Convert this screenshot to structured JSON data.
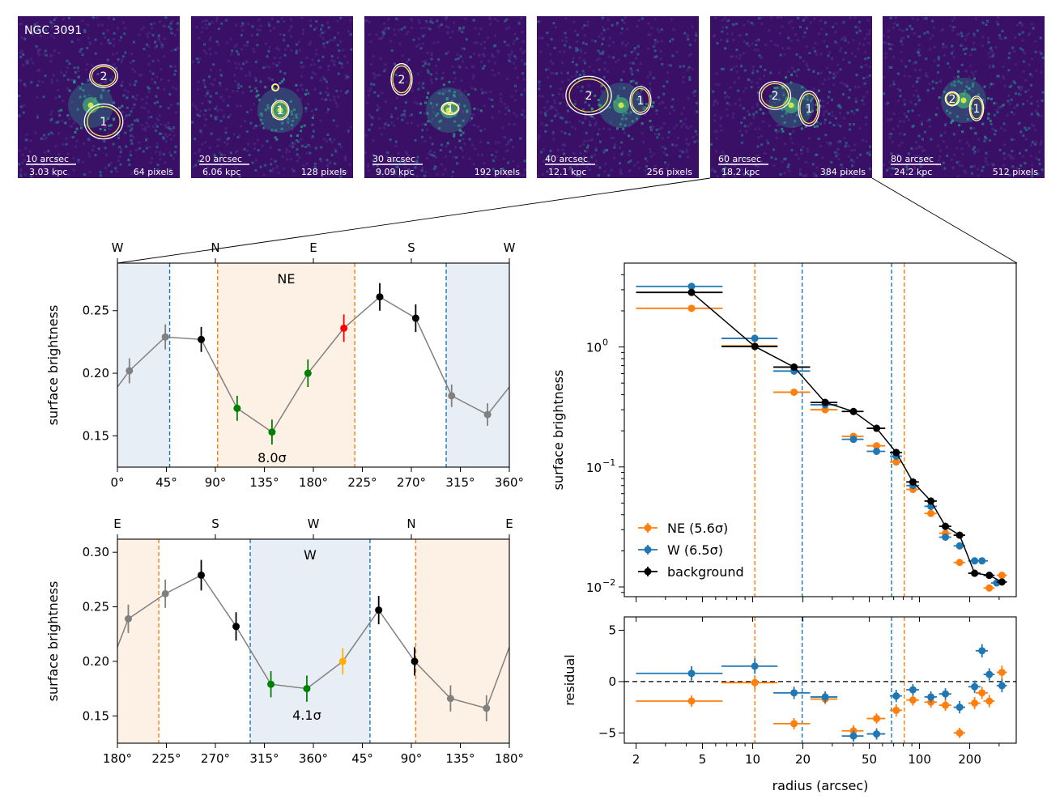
{
  "figure_title": "",
  "images": [
    {
      "object": "NGC 3091",
      "scale": "10 arcsec",
      "kpc": "3.03 kpc",
      "pixels": "64 pixels"
    },
    {
      "object": "",
      "scale": "20 arcsec",
      "kpc": "6.06 kpc",
      "pixels": "128 pixels"
    },
    {
      "object": "",
      "scale": "30 arcsec",
      "kpc": "9.09 kpc",
      "pixels": "192 pixels"
    },
    {
      "object": "",
      "scale": "40 arcsec",
      "kpc": "12.1 kpc",
      "pixels": "256 pixels"
    },
    {
      "object": "",
      "scale": "60 arcsec",
      "kpc": "18.2 kpc",
      "pixels": "384 pixels"
    },
    {
      "object": "",
      "scale": "80 arcsec",
      "kpc": "24.2 kpc",
      "pixels": "512 pixels"
    }
  ],
  "contour_labels": [
    "1",
    "2"
  ],
  "colors": {
    "ne": "#ff7f0e",
    "w": "#1f77b4",
    "bg": "#000000",
    "gray": "#808080",
    "green": "#008000",
    "red": "#ff0000",
    "gold": "#ffb000",
    "ne_fill": "#fdf1e5",
    "w_fill": "#e8eef6",
    "image_bg": "#3a0f66"
  },
  "chart_data": [
    {
      "type": "line",
      "id": "top-azimuthal",
      "title": "",
      "ylabel": "surface brightness",
      "xlabel": "",
      "xlim": [
        0,
        360
      ],
      "ylim": [
        0.125,
        0.288
      ],
      "xticks": [
        0,
        45,
        90,
        135,
        180,
        225,
        270,
        315,
        360
      ],
      "xtick_labels": [
        "0°",
        "45°",
        "90°",
        "135°",
        "180°",
        "225°",
        "270°",
        "315°",
        "360°"
      ],
      "yticks": [
        0.15,
        0.2,
        0.25
      ],
      "ytick_labels": [
        "0.15",
        "0.20",
        "0.25"
      ],
      "top_ticks": [
        0,
        90,
        180,
        270,
        360
      ],
      "top_tick_labels": [
        "W",
        "N",
        "E",
        "S",
        "W"
      ],
      "region_label": "NE",
      "significance": "8.0σ",
      "bands": [
        {
          "from": 0,
          "to": 48,
          "kind": "w"
        },
        {
          "from": 92,
          "to": 218,
          "kind": "ne"
        },
        {
          "from": 302,
          "to": 360,
          "kind": "w"
        }
      ],
      "vlines": [
        {
          "x": 48,
          "kind": "w"
        },
        {
          "x": 92,
          "kind": "ne"
        },
        {
          "x": 218,
          "kind": "ne"
        },
        {
          "x": 302,
          "kind": "w"
        }
      ],
      "points": [
        {
          "x": 11,
          "y": 0.202,
          "err": 0.01,
          "c": "gray"
        },
        {
          "x": 44,
          "y": 0.229,
          "err": 0.01,
          "c": "gray"
        },
        {
          "x": 77,
          "y": 0.227,
          "err": 0.01,
          "c": "bg"
        },
        {
          "x": 110,
          "y": 0.172,
          "err": 0.01,
          "c": "green"
        },
        {
          "x": 142,
          "y": 0.153,
          "err": 0.01,
          "c": "green"
        },
        {
          "x": 175,
          "y": 0.2,
          "err": 0.011,
          "c": "green"
        },
        {
          "x": 208,
          "y": 0.236,
          "err": 0.011,
          "c": "red"
        },
        {
          "x": 241,
          "y": 0.261,
          "err": 0.011,
          "c": "bg"
        },
        {
          "x": 274,
          "y": 0.244,
          "err": 0.011,
          "c": "bg"
        },
        {
          "x": 307,
          "y": 0.182,
          "err": 0.009,
          "c": "gray"
        },
        {
          "x": 340,
          "y": 0.167,
          "err": 0.009,
          "c": "gray"
        }
      ],
      "wrap_y": 0.189
    },
    {
      "type": "line",
      "id": "bottom-azimuthal",
      "title": "",
      "ylabel": "surface brightness",
      "xlabel": "",
      "xlim": [
        0,
        360
      ],
      "ylim": [
        0.125,
        0.312
      ],
      "xticks": [
        0,
        45,
        90,
        135,
        180,
        225,
        270,
        315,
        360
      ],
      "xtick_labels": [
        "180°",
        "225°",
        "270°",
        "315°",
        "360°",
        "45°",
        "90°",
        "135°",
        "180°"
      ],
      "yticks": [
        0.15,
        0.2,
        0.25,
        0.3
      ],
      "ytick_labels": [
        "0.15",
        "0.20",
        "0.25",
        "0.30"
      ],
      "top_ticks": [
        0,
        90,
        180,
        270,
        360
      ],
      "top_tick_labels": [
        "E",
        "S",
        "W",
        "N",
        "E"
      ],
      "region_label": "W",
      "significance": "4.1σ",
      "bands": [
        {
          "from": 0,
          "to": 38,
          "kind": "ne"
        },
        {
          "from": 122,
          "to": 232,
          "kind": "w"
        },
        {
          "from": 274,
          "to": 360,
          "kind": "ne"
        }
      ],
      "vlines": [
        {
          "x": 38,
          "kind": "ne"
        },
        {
          "x": 122,
          "kind": "w"
        },
        {
          "x": 232,
          "kind": "w"
        },
        {
          "x": 274,
          "kind": "ne"
        }
      ],
      "points": [
        {
          "x": 10,
          "y": 0.239,
          "err": 0.013,
          "c": "gray"
        },
        {
          "x": 44,
          "y": 0.262,
          "err": 0.013,
          "c": "gray"
        },
        {
          "x": 77,
          "y": 0.279,
          "err": 0.014,
          "c": "bg"
        },
        {
          "x": 109,
          "y": 0.232,
          "err": 0.013,
          "c": "bg"
        },
        {
          "x": 141,
          "y": 0.179,
          "err": 0.012,
          "c": "green"
        },
        {
          "x": 174,
          "y": 0.175,
          "err": 0.012,
          "c": "green"
        },
        {
          "x": 207,
          "y": 0.2,
          "err": 0.012,
          "c": "gold"
        },
        {
          "x": 240,
          "y": 0.247,
          "err": 0.013,
          "c": "bg"
        },
        {
          "x": 273,
          "y": 0.2,
          "err": 0.013,
          "c": "bg"
        },
        {
          "x": 306,
          "y": 0.166,
          "err": 0.012,
          "c": "gray"
        },
        {
          "x": 339,
          "y": 0.157,
          "err": 0.012,
          "c": "gray"
        }
      ],
      "wrap_y": 0.213
    },
    {
      "type": "scatter",
      "id": "radial-profile",
      "title": "",
      "xscale": "log",
      "yscale": "log",
      "ylabel": "surface brightness",
      "xlim": [
        1.7,
        380
      ],
      "ylim": [
        0.0083,
        5.0
      ],
      "yticks": [
        0.01,
        0.1,
        1
      ],
      "legend_loc": "lower left",
      "vlines": [
        {
          "x": 10.3,
          "kind": "ne"
        },
        {
          "x": 19.8,
          "kind": "w"
        },
        {
          "x": 68,
          "kind": "w"
        },
        {
          "x": 81,
          "kind": "ne"
        }
      ],
      "series": [
        {
          "name": "NE (5.6σ)",
          "kind": "ne",
          "x": [
            4.3,
            10.3,
            17.7,
            27.2,
            40.2,
            55.3,
            72.5,
            91.3,
            117,
            143,
            174,
            214,
            262,
            312
          ],
          "xerr_lo": [
            2.3,
            3.8,
            4.4,
            5.0,
            6.0,
            7.0,
            6.0,
            8.0,
            10,
            12,
            14,
            18,
            20,
            22
          ],
          "xerr_hi": [
            2.3,
            3.8,
            4.4,
            5.0,
            6.0,
            7.0,
            6.0,
            8.0,
            10,
            12,
            14,
            18,
            20,
            22
          ],
          "y": [
            2.1,
            1.02,
            0.42,
            0.3,
            0.18,
            0.15,
            0.11,
            0.065,
            0.041,
            0.028,
            0.016,
            0.013,
            0.0098,
            0.0125
          ]
        },
        {
          "name": "W (6.5σ)",
          "kind": "w",
          "x": [
            4.3,
            10.3,
            17.7,
            27.2,
            40.2,
            55.3,
            72.5,
            91.3,
            117,
            143,
            174,
            214,
            237,
            290
          ],
          "xerr_lo": [
            2.3,
            3.8,
            4.4,
            5.0,
            6.0,
            7.0,
            6.0,
            8.0,
            10,
            12,
            14,
            18,
            20,
            22
          ],
          "xerr_hi": [
            2.3,
            3.8,
            4.4,
            5.0,
            6.0,
            7.0,
            6.0,
            8.0,
            10,
            12,
            14,
            18,
            20,
            22
          ],
          "y": [
            3.2,
            1.18,
            0.63,
            0.33,
            0.17,
            0.135,
            0.123,
            0.07,
            0.047,
            0.026,
            0.022,
            0.0165,
            0.0165,
            0.0108
          ]
        },
        {
          "name": "background",
          "kind": "bg",
          "x": [
            4.3,
            10.3,
            17.7,
            27.2,
            40.2,
            55.3,
            72.5,
            91.3,
            117,
            143,
            174,
            214,
            262,
            312
          ],
          "xerr_lo": [
            2.3,
            3.8,
            4.4,
            5.0,
            6.0,
            7.0,
            6.0,
            8.0,
            10,
            12,
            14,
            18,
            20,
            22
          ],
          "xerr_hi": [
            2.3,
            3.8,
            4.4,
            5.0,
            6.0,
            7.0,
            6.0,
            8.0,
            10,
            12,
            14,
            18,
            20,
            22
          ],
          "y": [
            2.85,
            1.01,
            0.68,
            0.345,
            0.29,
            0.21,
            0.132,
            0.075,
            0.052,
            0.032,
            0.027,
            0.013,
            0.0125,
            0.011
          ]
        }
      ]
    },
    {
      "type": "scatter",
      "id": "radial-residual",
      "title": "",
      "xscale": "log",
      "ylabel": "residual",
      "xlabel": "radius (arcsec)",
      "xlim": [
        1.7,
        380
      ],
      "ylim": [
        -6,
        6.3
      ],
      "yticks": [
        -5,
        0,
        5
      ],
      "xticks": [
        2,
        5,
        10,
        20,
        50,
        100,
        200
      ],
      "vlines": [
        {
          "x": 10.3,
          "kind": "ne"
        },
        {
          "x": 19.8,
          "kind": "w"
        },
        {
          "x": 68,
          "kind": "w"
        },
        {
          "x": 81,
          "kind": "ne"
        }
      ],
      "series": [
        {
          "name": "NE",
          "kind": "ne",
          "x": [
            4.3,
            10.3,
            17.7,
            27.2,
            40.2,
            55.3,
            72.5,
            91.3,
            117,
            143,
            174,
            214,
            237,
            262,
            312
          ],
          "y": [
            -1.9,
            -0.1,
            -4.1,
            -1.7,
            -4.8,
            -3.6,
            -2.8,
            -1.8,
            -2.0,
            -2.3,
            -5.0,
            -2.1,
            -1.1,
            -1.9,
            0.9
          ],
          "yerr": [
            0.55,
            0.65,
            0.55,
            0.5,
            0.55,
            0.5,
            0.6,
            0.55,
            0.55,
            0.55,
            0.5,
            0.6,
            0.6,
            0.6,
            0.65
          ],
          "xerr": [
            2.3,
            3.8,
            4.4,
            5.0,
            6.0,
            7.0,
            6.0,
            8.0,
            10,
            12,
            14,
            18,
            20,
            20,
            22
          ]
        },
        {
          "name": "W",
          "kind": "w",
          "x": [
            4.3,
            10.3,
            17.7,
            27.2,
            40.2,
            55.3,
            72.5,
            91.3,
            117,
            143,
            174,
            214,
            237,
            262,
            312
          ],
          "y": [
            0.8,
            1.5,
            -1.1,
            -1.5,
            -5.3,
            -5.1,
            -1.4,
            -0.8,
            -1.5,
            -1.2,
            -2.5,
            -0.5,
            3.0,
            0.7,
            -0.4
          ],
          "yerr": [
            0.7,
            0.75,
            0.6,
            0.55,
            0.55,
            0.55,
            0.6,
            0.55,
            0.55,
            0.55,
            0.6,
            0.6,
            0.65,
            0.6,
            0.65
          ],
          "xerr": [
            2.3,
            3.8,
            4.4,
            5.0,
            6.0,
            7.0,
            6.0,
            8.0,
            10,
            12,
            14,
            18,
            20,
            20,
            22
          ]
        }
      ]
    }
  ]
}
